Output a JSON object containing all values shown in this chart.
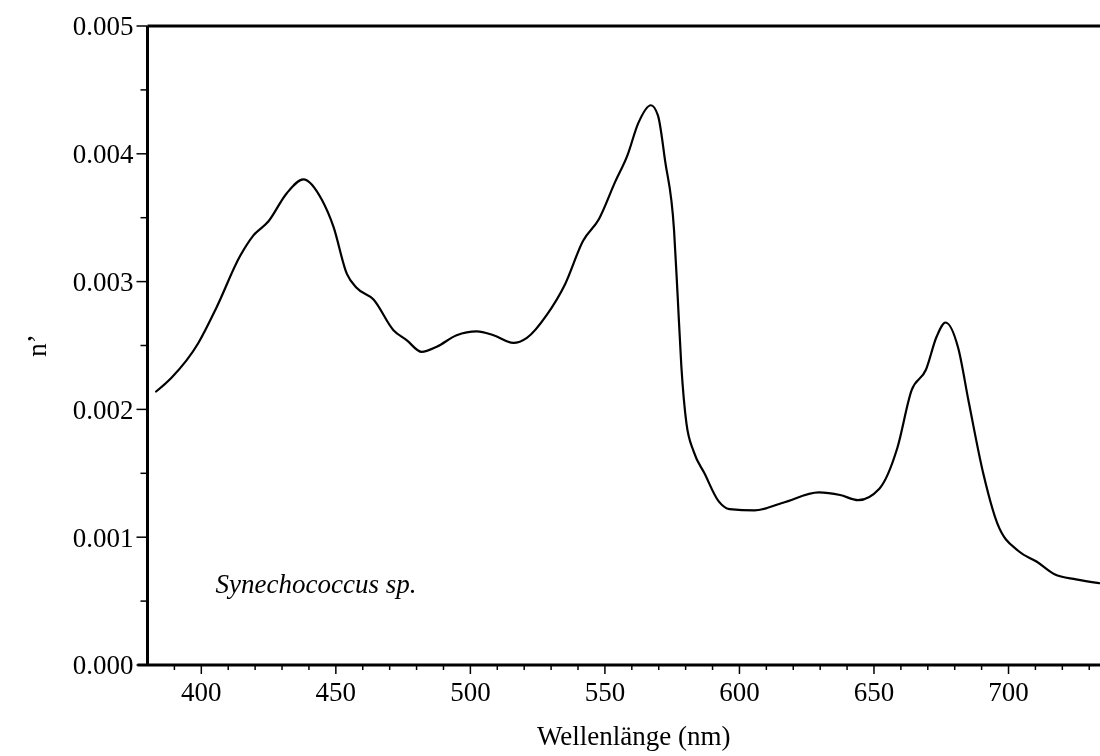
{
  "chart_data": {
    "type": "line",
    "xlabel": "Wellenlänge (nm)",
    "ylabel": "n’",
    "annotations": [
      "Synechococcus sp."
    ],
    "xlim": [
      380,
      734
    ],
    "ylim": [
      0,
      0.005
    ],
    "xticks": [
      {
        "value": 390,
        "label": null
      },
      400,
      {
        "value": 410,
        "label": null
      },
      {
        "value": 420,
        "label": null
      },
      {
        "value": 430,
        "label": null
      },
      {
        "value": 440,
        "label": null
      },
      450,
      {
        "value": 460,
        "label": null
      },
      {
        "value": 470,
        "label": null
      },
      {
        "value": 480,
        "label": null
      },
      {
        "value": 490,
        "label": null
      },
      500,
      {
        "value": 510,
        "label": null
      },
      {
        "value": 520,
        "label": null
      },
      {
        "value": 530,
        "label": null
      },
      {
        "value": 540,
        "label": null
      },
      550,
      {
        "value": 560,
        "label": null
      },
      {
        "value": 570,
        "label": null
      },
      {
        "value": 580,
        "label": null
      },
      {
        "value": 590,
        "label": null
      },
      600,
      {
        "value": 610,
        "label": null
      },
      {
        "value": 620,
        "label": null
      },
      {
        "value": 630,
        "label": null
      },
      {
        "value": 640,
        "label": null
      },
      650,
      {
        "value": 660,
        "label": null
      },
      {
        "value": 670,
        "label": null
      },
      {
        "value": 680,
        "label": null
      },
      {
        "value": 690,
        "label": null
      },
      700,
      {
        "value": 710,
        "label": null
      },
      {
        "value": 720,
        "label": null
      },
      {
        "value": 730,
        "label": null
      }
    ],
    "yticks": [
      {
        "value": 0,
        "label": "0.000"
      },
      {
        "value": 0.0005,
        "label": null
      },
      0.001,
      {
        "value": 0.0015,
        "label": null
      },
      0.002,
      {
        "value": 0.0025,
        "label": null
      },
      0.003,
      {
        "value": 0.0035,
        "label": null
      },
      0.004,
      {
        "value": 0.0045,
        "label": null
      },
      0.005
    ],
    "grid": false,
    "marker": "none",
    "line_style": "solid",
    "series": [
      {
        "color": "#000000",
        "x": [
          383.2,
          389.0,
          398.9,
          405.7,
          414.4,
          419.3,
          424.9,
          431.7,
          437.9,
          444.8,
          449.1,
          454.1,
          457.8,
          464.0,
          471.4,
          476.4,
          481.9,
          487.5,
          494.9,
          502.4,
          508.6,
          516.0,
          521.0,
          528.4,
          535.2,
          541.9,
          547.8,
          553.8,
          558.4,
          562.4,
          567.1,
          569.7,
          572.4,
          575.7,
          577.0,
          578.4,
          580.3,
          583.0,
          587.0,
          592.3,
          596.3,
          605.6,
          616.2,
          629.5,
          637.4,
          644.1,
          652.0,
          658.7,
          664.0,
          669.3,
          673.3,
          676.6,
          681.3,
          685.2,
          690.6,
          695.8,
          703.8,
          710.4,
          717.1,
          725.1,
          733.7
        ],
        "values": [
          0.00214,
          0.00225,
          0.00252,
          0.0028,
          0.0032,
          0.00336,
          0.00347,
          0.00369,
          0.0038,
          0.00364,
          0.00343,
          0.00306,
          0.00295,
          0.00286,
          0.00262,
          0.00254,
          0.00245,
          0.00249,
          0.00258,
          0.00261,
          0.00258,
          0.00252,
          0.00256,
          0.00274,
          0.00298,
          0.00332,
          0.00349,
          0.00378,
          0.00399,
          0.00424,
          0.00438,
          0.0043,
          0.00394,
          0.0034,
          0.0029,
          0.00234,
          0.00189,
          0.00167,
          0.0015,
          0.00128,
          0.00122,
          0.00121,
          0.00127,
          0.00135,
          0.00133,
          0.00129,
          0.00138,
          0.0017,
          0.00215,
          0.00231,
          0.00257,
          0.00268,
          0.00248,
          0.00206,
          0.0015,
          0.00111,
          0.00089,
          0.00081,
          0.00071,
          0.00067,
          0.00064
        ]
      }
    ]
  }
}
